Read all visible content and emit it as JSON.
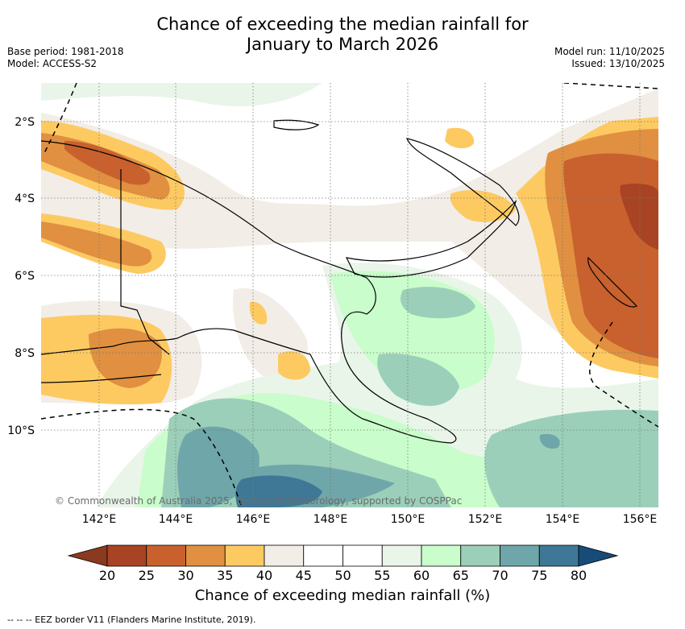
{
  "title_line1": "Chance of exceeding the median rainfall for",
  "title_line2": "January to March 2026",
  "base_period": "Base period: 1981-2018",
  "model": "Model: ACCESS-S2",
  "model_run": "Model run: 11/10/2025",
  "issued": "Issued: 13/10/2025",
  "lat_labels": [
    "2°S",
    "4°S",
    "6°S",
    "8°S",
    "10°S"
  ],
  "lon_labels": [
    "142°E",
    "144°E",
    "146°E",
    "148°E",
    "150°E",
    "152°E",
    "154°E",
    "156°E"
  ],
  "copyright": "© Commonwealth of Australia 2025, Bureau of Meteorology, supported by COSPPac",
  "colorbar": {
    "ticks": [
      "20",
      "25",
      "30",
      "35",
      "40",
      "45",
      "50",
      "55",
      "60",
      "65",
      "70",
      "75",
      "80"
    ],
    "colors": [
      "#a84423",
      "#c8612e",
      "#e09040",
      "#fdca62",
      "#f2ede7",
      "#ffffff",
      "#ffffff",
      "#eaf5ea",
      "#c9fdcb",
      "#9bcfb9",
      "#6fa6a9",
      "#3f7896"
    ],
    "under_color": "#8a3a1e",
    "over_color": "#174c78",
    "label": "Chance of exceeding median rainfall (%)"
  },
  "legend_note": "-- -- -- EEZ border V11 (Flanders Marine Institute, 2019)."
}
